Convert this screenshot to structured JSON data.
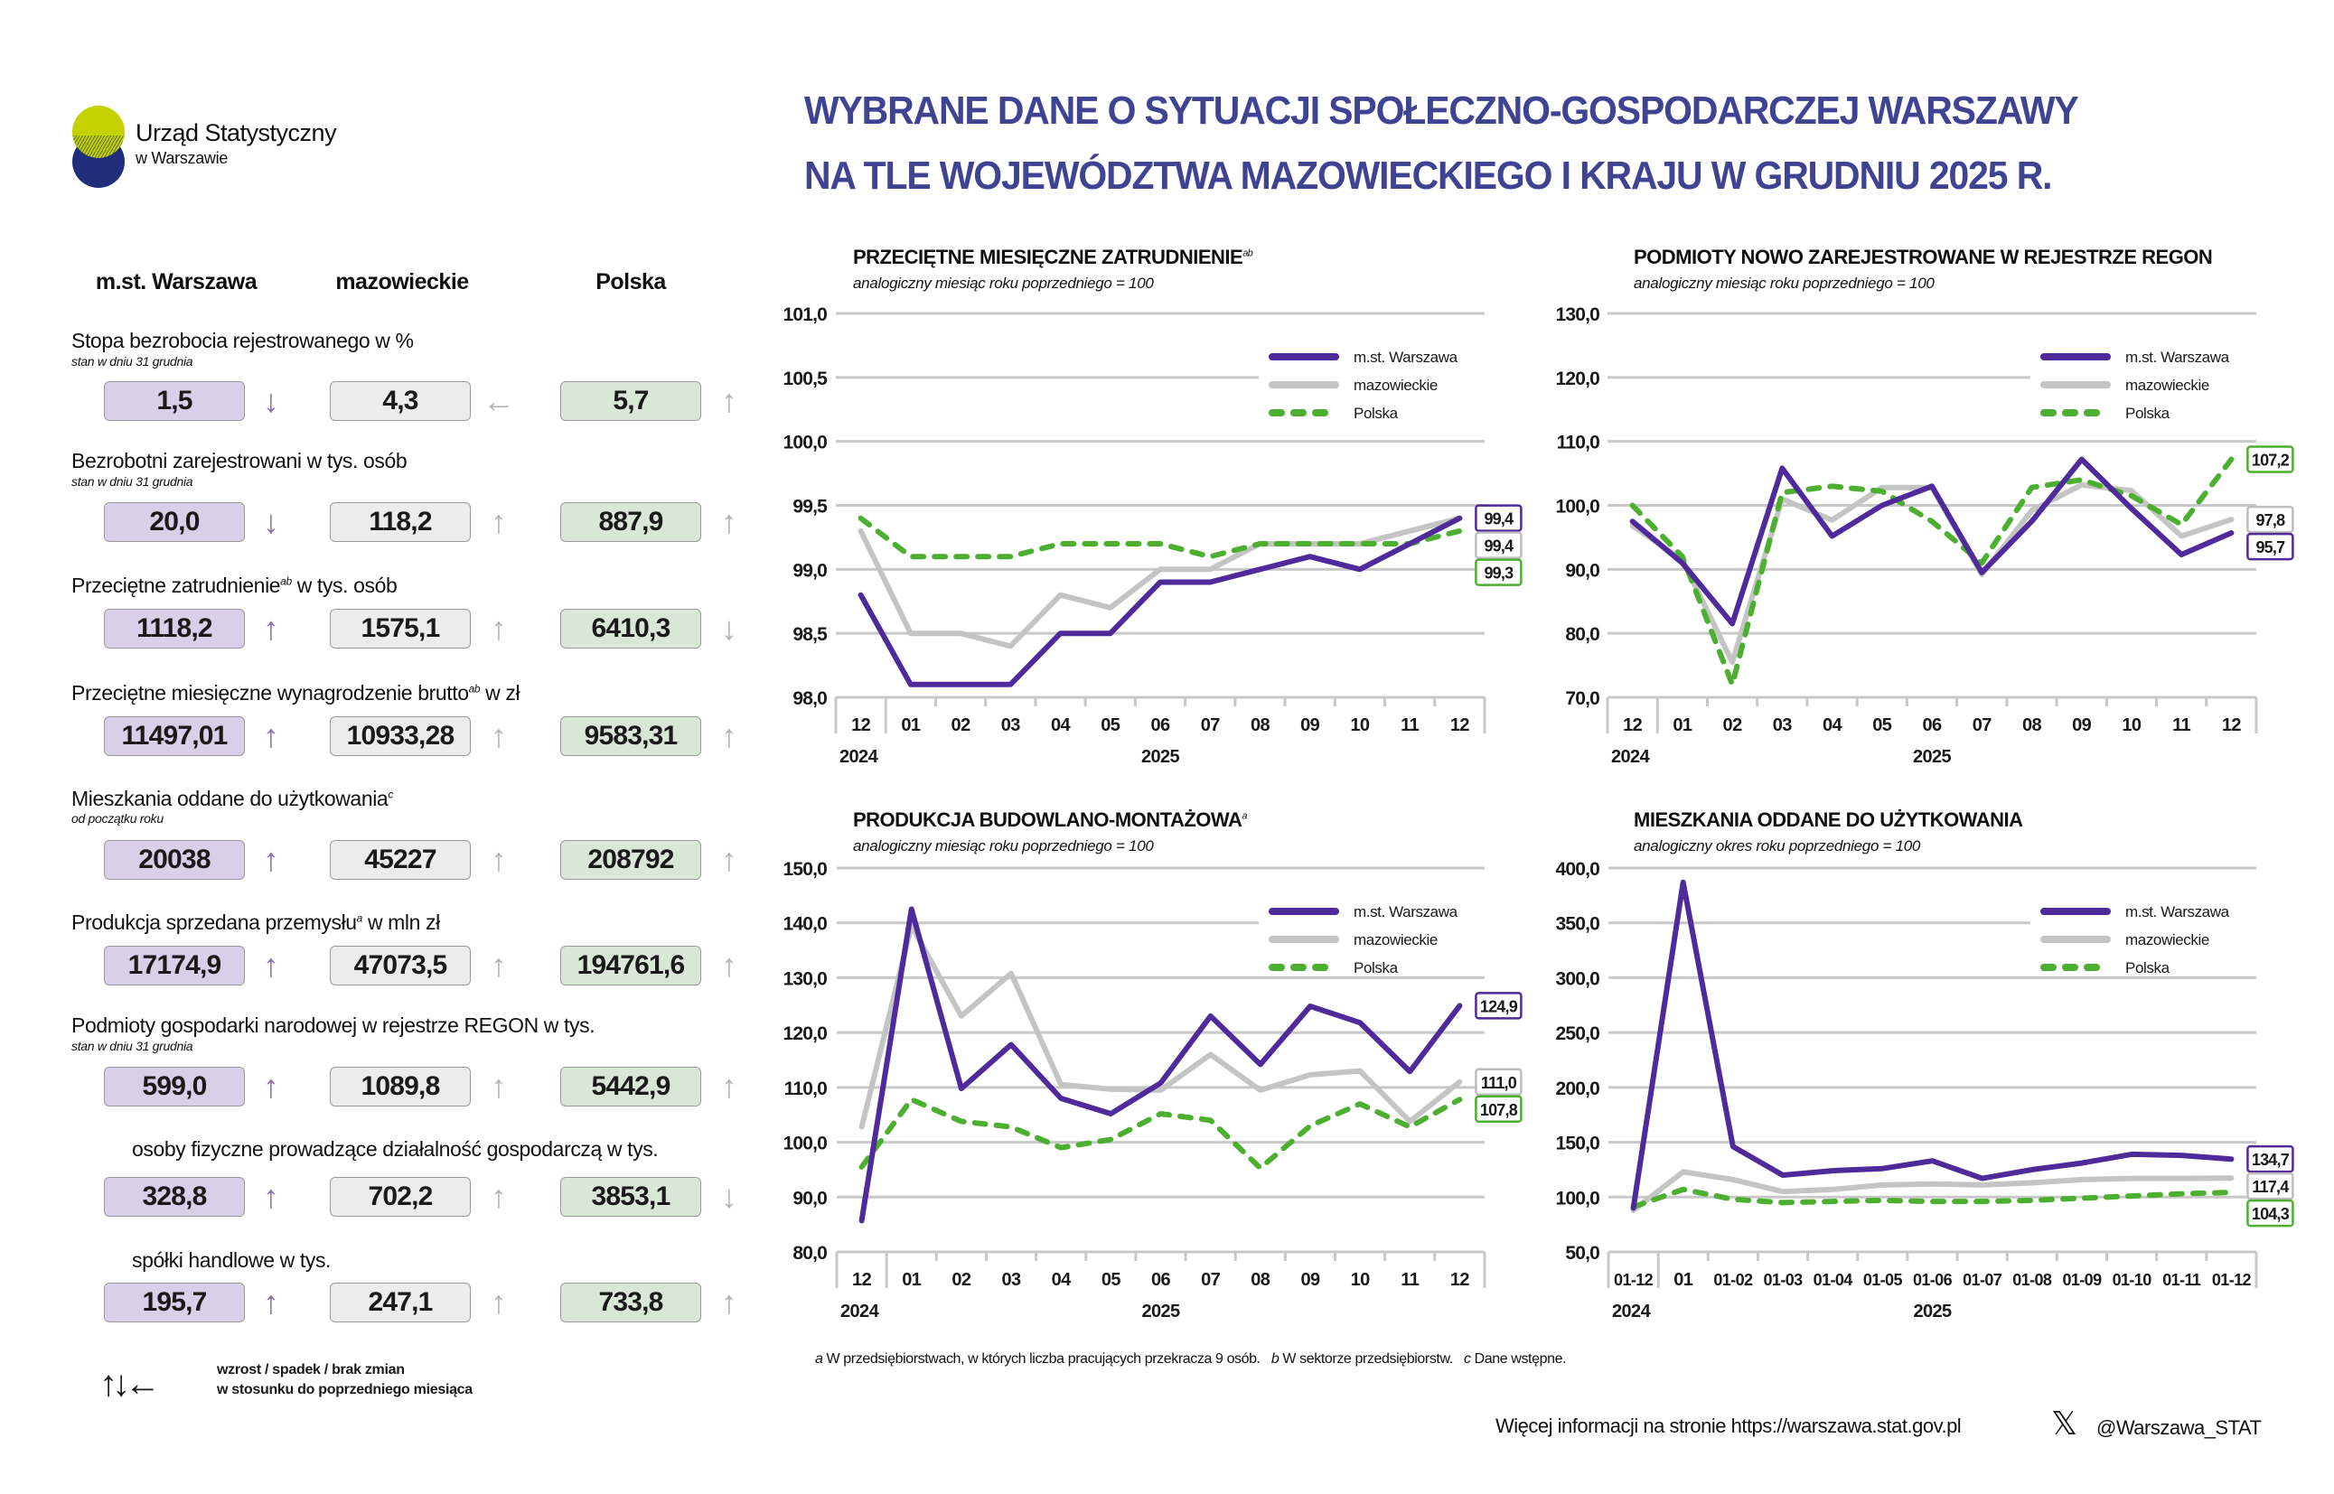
{
  "logo": {
    "title": "Urząd Statystyczny",
    "subtitle": "w Warszawie",
    "colors": {
      "top": "#c3d200",
      "bottom": "#1f2d7a"
    }
  },
  "title": {
    "line1": "WYBRANE DANE O SYTUACJI SPOŁECZNO-GOSPODARCZEJ WARSZAWY",
    "line2": "NA TLE WOJEWÓDZTWA MAZOWIECKIEGO I KRAJU W GRUDNIU 2025 R.",
    "color": "#3f4392"
  },
  "columns": [
    "m.st. Warszawa",
    "mazowieckie",
    "Polska"
  ],
  "colors": {
    "warszawa": "#4f2a9a",
    "mazowieckie": "#c4c4c4",
    "polska": "#4caf2f",
    "box_warszawa": "#d8d0e8",
    "box_mazowieckie": "#ececec",
    "box_polska": "#d9e8d6",
    "arrow_warszawa": "#8a6fb5",
    "arrow_other": "#b3b3b3"
  },
  "indicators": [
    {
      "label": "Stopa bezrobocia rejestrowanego w %",
      "sup": "",
      "label_suffix": "",
      "sub": "stan w dniu 31 grudnia",
      "values": [
        "1,5",
        "4,3",
        "5,7"
      ],
      "trends": [
        "down",
        "none",
        "up"
      ]
    },
    {
      "label": "Bezrobotni zarejestrowani w tys. osób",
      "sup": "",
      "label_suffix": "",
      "sub": "stan w dniu 31 grudnia",
      "values": [
        "20,0",
        "118,2",
        "887,9"
      ],
      "trends": [
        "down",
        "up",
        "up"
      ]
    },
    {
      "label": "Przeciętne zatrudnienie",
      "sup": "ab",
      "label_suffix": " w tys. osób",
      "sub": "",
      "values": [
        "1118,2",
        "1575,1",
        "6410,3"
      ],
      "trends": [
        "up",
        "up",
        "down"
      ]
    },
    {
      "label": "Przeciętne miesięczne wynagrodzenie brutto",
      "sup": "ab",
      "label_suffix": " w zł",
      "sub": "",
      "values": [
        "11497,01",
        "10933,28",
        "9583,31"
      ],
      "trends": [
        "up",
        "up",
        "up"
      ]
    },
    {
      "label": "Mieszkania oddane do użytkowania",
      "sup": "c",
      "label_suffix": "",
      "sub": "od początku roku",
      "values": [
        "20038",
        "45227",
        "208792"
      ],
      "trends": [
        "up",
        "up",
        "up"
      ]
    },
    {
      "label": "Produkcja sprzedana przemysłu",
      "sup": "a",
      "label_suffix": " w mln zł",
      "sub": "",
      "values": [
        "17174,9",
        "47073,5",
        "194761,6"
      ],
      "trends": [
        "up",
        "up",
        "up"
      ]
    },
    {
      "label": "Podmioty gospodarki narodowej w rejestrze REGON w tys.",
      "sup": "",
      "label_suffix": "",
      "sub": "stan w dniu 31 grudnia",
      "values": [
        "599,0",
        "1089,8",
        "5442,9"
      ],
      "trends": [
        "up",
        "up",
        "up"
      ]
    },
    {
      "label": "osoby fizyczne prowadzące działalność gospodarczą w tys.",
      "sup": "",
      "label_suffix": "",
      "sub": "",
      "values": [
        "328,8",
        "702,2",
        "3853,1"
      ],
      "trends": [
        "up",
        "up",
        "down"
      ]
    },
    {
      "label": "spółki handlowe w tys.",
      "sup": "",
      "label_suffix": "",
      "sub": "",
      "values": [
        "195,7",
        "247,1",
        "733,8"
      ],
      "trends": [
        "up",
        "up",
        "up"
      ]
    }
  ],
  "arrow_glyphs": {
    "up": "↑",
    "down": "↓",
    "none": "←"
  },
  "trend_legend": {
    "arrows": "↑↓←",
    "line1": "wzrost / spadek / brak zmian",
    "line2": "w stosunku do poprzedniego miesiąca"
  },
  "chart_data": [
    {
      "type": "line",
      "title": "PRZECIĘTNE MIESIĘCZNE ZATRUDNIENIE",
      "title_sup": "ab",
      "subtitle": "analogiczny miesiąc roku poprzedniego = 100",
      "categories": [
        "12",
        "01",
        "02",
        "03",
        "04",
        "05",
        "06",
        "07",
        "08",
        "09",
        "10",
        "11",
        "12"
      ],
      "year_labels": [
        {
          "label": "2024",
          "at": 0
        },
        {
          "label": "2025",
          "at": 6
        }
      ],
      "ylim": [
        98.0,
        101.0
      ],
      "yticks": [
        98.0,
        98.5,
        99.0,
        99.5,
        100.0,
        100.5,
        101.0
      ],
      "ytick_labels": [
        "98,0",
        "98,5",
        "99,0",
        "99,5",
        "100,0",
        "100,5",
        "101,0"
      ],
      "grid": true,
      "legend": "top-right",
      "series": [
        {
          "name": "m.st. Warszawa",
          "key": "warszawa",
          "values": [
            98.8,
            98.1,
            98.1,
            98.1,
            98.5,
            98.5,
            98.9,
            98.9,
            99.0,
            99.1,
            99.0,
            99.2,
            99.4
          ],
          "end_label": "99,4"
        },
        {
          "name": "mazowieckie",
          "key": "mazowieckie",
          "values": [
            99.3,
            98.5,
            98.5,
            98.4,
            98.8,
            98.7,
            99.0,
            99.0,
            99.2,
            99.2,
            99.2,
            99.3,
            99.4
          ],
          "end_label": "99,4"
        },
        {
          "name": "Polska",
          "key": "polska",
          "values": [
            99.4,
            99.1,
            99.1,
            99.1,
            99.2,
            99.2,
            99.2,
            99.1,
            99.2,
            99.2,
            99.2,
            99.2,
            99.3
          ],
          "end_label": "99,3"
        }
      ]
    },
    {
      "type": "line",
      "title": "PODMIOTY NOWO ZAREJESTROWANE W REJESTRZE REGON",
      "title_sup": "",
      "subtitle": "analogiczny miesiąc roku poprzedniego = 100",
      "categories": [
        "12",
        "01",
        "02",
        "03",
        "04",
        "05",
        "06",
        "07",
        "08",
        "09",
        "10",
        "11",
        "12"
      ],
      "year_labels": [
        {
          "label": "2024",
          "at": 0
        },
        {
          "label": "2025",
          "at": 6
        }
      ],
      "ylim": [
        70.0,
        130.0
      ],
      "yticks": [
        70,
        80,
        90,
        100,
        110,
        120,
        130
      ],
      "ytick_labels": [
        "70,0",
        "80,0",
        "90,0",
        "100,0",
        "110,0",
        "120,0",
        "130,0"
      ],
      "grid": true,
      "legend": "top-right",
      "series": [
        {
          "name": "m.st. Warszawa",
          "key": "warszawa",
          "values": [
            97.5,
            91.0,
            81.5,
            105.8,
            95.2,
            100.0,
            103.0,
            89.5,
            97.5,
            107.2,
            99.5,
            92.3,
            95.7
          ],
          "end_label": "95,7"
        },
        {
          "name": "mazowieckie",
          "key": "mazowieckie",
          "values": [
            96.8,
            91.5,
            75.5,
            101.0,
            97.7,
            102.8,
            102.8,
            89.2,
            99.2,
            103.2,
            102.3,
            95.2,
            97.8
          ],
          "end_label": "97,8"
        },
        {
          "name": "Polska",
          "key": "polska",
          "values": [
            100.0,
            92.0,
            72.0,
            102.0,
            103.0,
            102.2,
            97.5,
            91.0,
            102.8,
            104.0,
            101.5,
            97.0,
            107.2
          ],
          "end_label": "107,2"
        }
      ]
    },
    {
      "type": "line",
      "title": "PRODUKCJA BUDOWLANO-MONTAŻOWA",
      "title_sup": "a",
      "subtitle": "analogiczny miesiąc roku poprzedniego = 100",
      "categories": [
        "12",
        "01",
        "02",
        "03",
        "04",
        "05",
        "06",
        "07",
        "08",
        "09",
        "10",
        "11",
        "12"
      ],
      "year_labels": [
        {
          "label": "2024",
          "at": 0
        },
        {
          "label": "2025",
          "at": 6
        }
      ],
      "ylim": [
        80.0,
        150.0
      ],
      "yticks": [
        80,
        90,
        100,
        110,
        120,
        130,
        140,
        150
      ],
      "ytick_labels": [
        "80,0",
        "90,0",
        "100,0",
        "110,0",
        "120,0",
        "130,0",
        "140,0",
        "150,0"
      ],
      "grid": true,
      "legend": "top-right",
      "series": [
        {
          "name": "m.st. Warszawa",
          "key": "warszawa",
          "values": [
            85.7,
            142.5,
            109.8,
            117.8,
            108.0,
            105.2,
            110.8,
            123.0,
            114.2,
            124.8,
            121.8,
            112.9,
            124.9
          ],
          "end_label": "124,9"
        },
        {
          "name": "mazowieckie",
          "key": "mazowieckie",
          "values": [
            102.8,
            139.5,
            123.0,
            130.8,
            110.5,
            109.7,
            109.5,
            116.0,
            109.5,
            112.3,
            113.0,
            103.8,
            111.0
          ],
          "end_label": "111,0"
        },
        {
          "name": "Polska",
          "key": "polska",
          "values": [
            95.5,
            107.8,
            103.8,
            102.8,
            99.0,
            100.5,
            105.2,
            104.0,
            95.3,
            103.0,
            107.0,
            102.8,
            107.8
          ],
          "end_label": "107,8"
        }
      ]
    },
    {
      "type": "line",
      "title": "MIESZKANIA ODDANE DO UŻYTKOWANIA",
      "title_sup": "",
      "subtitle": "analogiczny okres roku poprzedniego = 100",
      "categories": [
        "01-12",
        "01",
        "01-02",
        "01-03",
        "01-04",
        "01-05",
        "01-06",
        "01-07",
        "01-08",
        "01-09",
        "01-10",
        "01-11",
        "01-12"
      ],
      "year_labels": [
        {
          "label": "2024",
          "at": 0
        },
        {
          "label": "2025",
          "at": 6
        }
      ],
      "ylim": [
        50.0,
        400.0
      ],
      "yticks": [
        50,
        100,
        150,
        200,
        250,
        300,
        350,
        400
      ],
      "ytick_labels": [
        "50,0",
        "100,0",
        "150,0",
        "200,0",
        "250,0",
        "300,0",
        "350,0",
        "400,0"
      ],
      "grid": true,
      "legend": "top-right",
      "series": [
        {
          "name": "m.st. Warszawa",
          "key": "warszawa",
          "values": [
            90,
            387,
            146,
            120,
            124,
            126,
            133,
            117,
            125,
            131,
            139,
            138,
            134.7
          ],
          "end_label": "134,7"
        },
        {
          "name": "mazowieckie",
          "key": "mazowieckie",
          "values": [
            88,
            123,
            116,
            105,
            107,
            111,
            112,
            111,
            113,
            116,
            117,
            117,
            117.4
          ],
          "end_label": "117,4"
        },
        {
          "name": "Polska",
          "key": "polska",
          "values": [
            91,
            107,
            98,
            95,
            96,
            97,
            96,
            96,
            97,
            99,
            101,
            103,
            104.3
          ],
          "end_label": "104,3"
        }
      ]
    }
  ],
  "footnotes": [
    {
      "mark": "a",
      "text": " W przedsiębiorstwach, w których liczba pracujących przekracza 9 osób."
    },
    {
      "mark": "b",
      "text": " W sektorze przedsiębiorstw."
    },
    {
      "mark": "c",
      "text": " Dane wstępne."
    }
  ],
  "footer": {
    "more_info": "Więcej informacji na stronie https://warszawa.stat.gov.pl",
    "social_icon": "x-logo-icon",
    "social_glyph": "𝕏",
    "handle": "@Warszawa_STAT"
  }
}
